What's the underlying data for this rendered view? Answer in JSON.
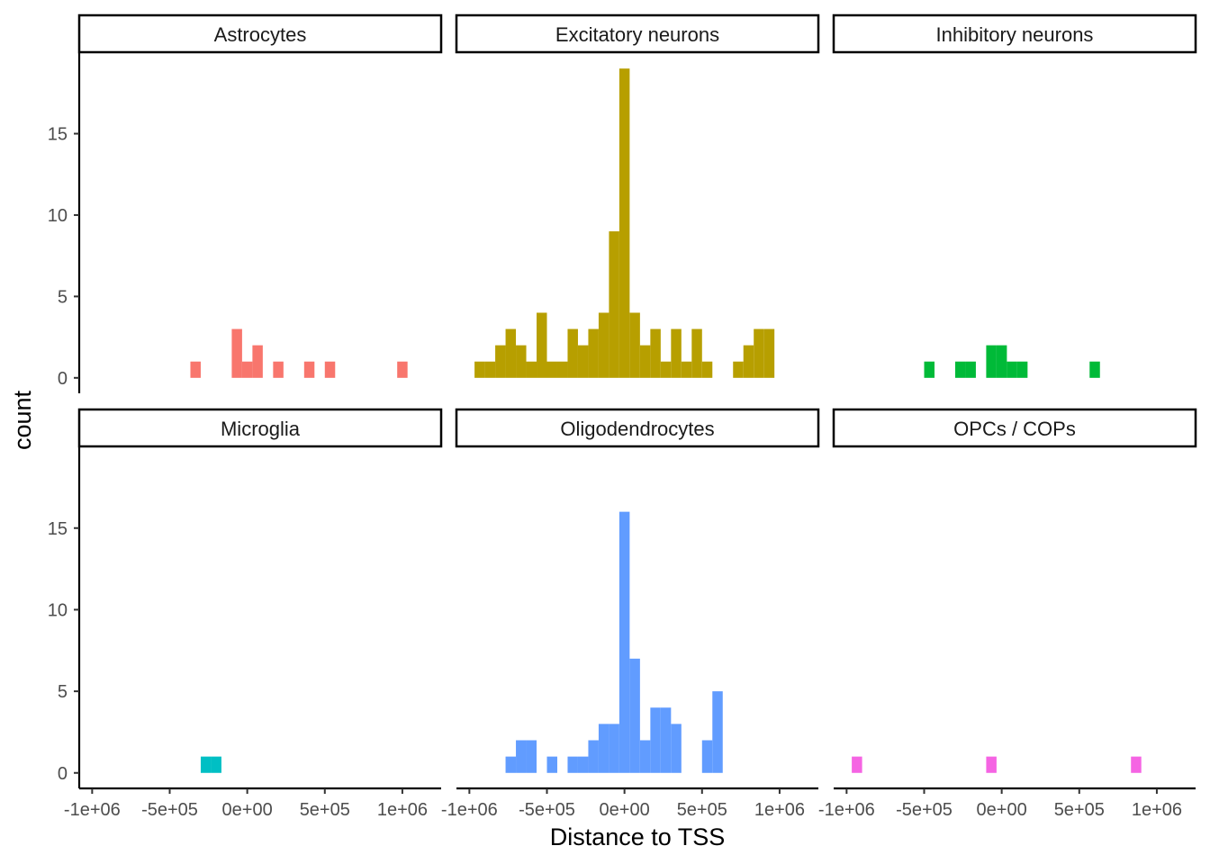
{
  "chart_data": {
    "type": "bar",
    "xlabel": "Distance to TSS",
    "ylabel": "count",
    "xlim": [
      -1083333,
      1250000
    ],
    "ylim": [
      -0.95,
      19.95
    ],
    "x_ticks": [
      -1000000,
      -500000,
      0,
      500000,
      1000000
    ],
    "x_tick_labels": [
      "-1e+06",
      "-5e+05",
      "0e+00",
      "5e+05",
      "1e+06"
    ],
    "y_ticks": [
      0,
      5,
      10,
      15
    ],
    "y_tick_labels": [
      "0",
      "5",
      "10",
      "15"
    ],
    "bin_width": 66667,
    "panels": [
      {
        "name": "Astrocytes",
        "color": "#F8766D",
        "bins": [
          {
            "x": -333333,
            "count": 1
          },
          {
            "x": -66667,
            "count": 3
          },
          {
            "x": 0,
            "count": 1
          },
          {
            "x": 66667,
            "count": 2
          },
          {
            "x": 200000,
            "count": 1
          },
          {
            "x": 400000,
            "count": 1
          },
          {
            "x": 533333,
            "count": 1
          },
          {
            "x": 1000000,
            "count": 1
          }
        ]
      },
      {
        "name": "Excitatory neurons",
        "color": "#B79F00",
        "bins": [
          {
            "x": -933333,
            "count": 1
          },
          {
            "x": -866667,
            "count": 1
          },
          {
            "x": -800000,
            "count": 2
          },
          {
            "x": -733333,
            "count": 3
          },
          {
            "x": -666667,
            "count": 2
          },
          {
            "x": -600000,
            "count": 1
          },
          {
            "x": -533333,
            "count": 4
          },
          {
            "x": -466667,
            "count": 1
          },
          {
            "x": -400000,
            "count": 1
          },
          {
            "x": -333333,
            "count": 3
          },
          {
            "x": -266667,
            "count": 2
          },
          {
            "x": -200000,
            "count": 3
          },
          {
            "x": -133333,
            "count": 4
          },
          {
            "x": -66667,
            "count": 9
          },
          {
            "x": 0,
            "count": 19
          },
          {
            "x": 66667,
            "count": 4
          },
          {
            "x": 133333,
            "count": 2
          },
          {
            "x": 200000,
            "count": 3
          },
          {
            "x": 266667,
            "count": 1
          },
          {
            "x": 333333,
            "count": 3
          },
          {
            "x": 400000,
            "count": 1
          },
          {
            "x": 466667,
            "count": 3
          },
          {
            "x": 533333,
            "count": 1
          },
          {
            "x": 733333,
            "count": 1
          },
          {
            "x": 800000,
            "count": 2
          },
          {
            "x": 866667,
            "count": 3
          },
          {
            "x": 933333,
            "count": 3
          }
        ]
      },
      {
        "name": "Inhibitory neurons",
        "color": "#00BA38",
        "bins": [
          {
            "x": -466667,
            "count": 1
          },
          {
            "x": -266667,
            "count": 1
          },
          {
            "x": -200000,
            "count": 1
          },
          {
            "x": -66667,
            "count": 2
          },
          {
            "x": 0,
            "count": 2
          },
          {
            "x": 66667,
            "count": 1
          },
          {
            "x": 133333,
            "count": 1
          },
          {
            "x": 600000,
            "count": 1
          }
        ]
      },
      {
        "name": "Microglia",
        "color": "#00BFC4",
        "bins": [
          {
            "x": -266667,
            "count": 1
          },
          {
            "x": -200000,
            "count": 1
          }
        ]
      },
      {
        "name": "Oligodendrocytes",
        "color": "#619CFF",
        "bins": [
          {
            "x": -733333,
            "count": 1
          },
          {
            "x": -666667,
            "count": 2
          },
          {
            "x": -600000,
            "count": 2
          },
          {
            "x": -466667,
            "count": 1
          },
          {
            "x": -333333,
            "count": 1
          },
          {
            "x": -266667,
            "count": 1
          },
          {
            "x": -200000,
            "count": 2
          },
          {
            "x": -133333,
            "count": 3
          },
          {
            "x": -66667,
            "count": 3
          },
          {
            "x": 0,
            "count": 16
          },
          {
            "x": 66667,
            "count": 7
          },
          {
            "x": 133333,
            "count": 2
          },
          {
            "x": 200000,
            "count": 4
          },
          {
            "x": 266667,
            "count": 4
          },
          {
            "x": 333333,
            "count": 3
          },
          {
            "x": 533333,
            "count": 2
          },
          {
            "x": 600000,
            "count": 5
          }
        ]
      },
      {
        "name": "OPCs / COPs",
        "color": "#F564E3",
        "bins": [
          {
            "x": -933333,
            "count": 1
          },
          {
            "x": -66667,
            "count": 1
          },
          {
            "x": 866667,
            "count": 1
          }
        ]
      }
    ]
  }
}
